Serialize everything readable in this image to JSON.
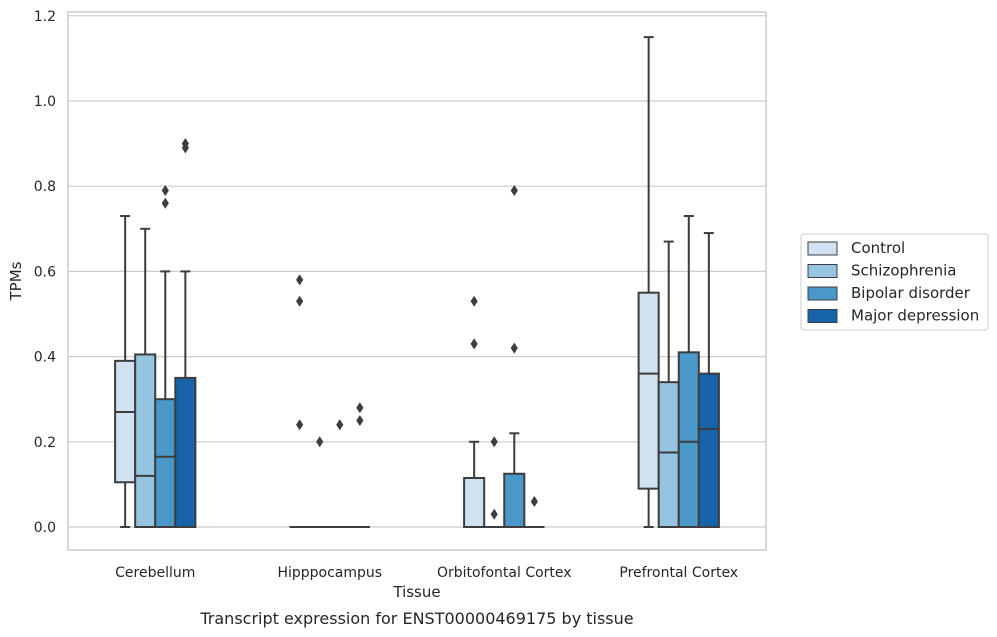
{
  "chart_data": {
    "type": "box",
    "title": "",
    "caption": "Transcript expression for ENST00000469175 by tissue",
    "xlabel": "Tissue",
    "ylabel": "TPMs",
    "ylim": [
      -0.055,
      1.21
    ],
    "yticks": [
      "0.0",
      "0.2",
      "0.4",
      "0.6",
      "0.8",
      "1.0",
      "1.2"
    ],
    "grid": true,
    "legend_position": "right",
    "categories": [
      "Cerebellum",
      "Hipppocampus",
      "Orbitofontal Cortex",
      "Prefrontal Cortex"
    ],
    "series": [
      {
        "name": "Control",
        "color": "#d0e1f2",
        "boxes": [
          {
            "whislo": 0.0,
            "q1": 0.105,
            "med": 0.27,
            "q3": 0.39,
            "whishi": 0.73,
            "fliers": []
          },
          {
            "whislo": 0.0,
            "q1": 0.0,
            "med": 0.0,
            "q3": 0.0,
            "whishi": 0.0,
            "fliers": [
              0.58,
              0.53,
              0.24
            ]
          },
          {
            "whislo": 0.0,
            "q1": 0.0,
            "med": 0.0,
            "q3": 0.115,
            "whishi": 0.2,
            "fliers": [
              0.53,
              0.43
            ]
          },
          {
            "whislo": 0.0,
            "q1": 0.09,
            "med": 0.36,
            "q3": 0.55,
            "whishi": 1.15,
            "fliers": []
          }
        ]
      },
      {
        "name": "Schizophrenia",
        "color": "#94c4df",
        "boxes": [
          {
            "whislo": 0.0,
            "q1": 0.0,
            "med": 0.12,
            "q3": 0.405,
            "whishi": 0.7,
            "fliers": []
          },
          {
            "whislo": 0.0,
            "q1": 0.0,
            "med": 0.0,
            "q3": 0.0,
            "whishi": 0.0,
            "fliers": [
              0.2
            ]
          },
          {
            "whislo": 0.0,
            "q1": 0.0,
            "med": 0.0,
            "q3": 0.0,
            "whishi": 0.0,
            "fliers": [
              0.2,
              0.03
            ]
          },
          {
            "whislo": 0.0,
            "q1": 0.0,
            "med": 0.175,
            "q3": 0.34,
            "whishi": 0.67,
            "fliers": []
          }
        ]
      },
      {
        "name": "Bipolar disorder",
        "color": "#4a98c9",
        "boxes": [
          {
            "whislo": 0.0,
            "q1": 0.0,
            "med": 0.165,
            "q3": 0.3,
            "whishi": 0.6,
            "fliers": [
              0.79,
              0.76
            ]
          },
          {
            "whislo": 0.0,
            "q1": 0.0,
            "med": 0.0,
            "q3": 0.0,
            "whishi": 0.0,
            "fliers": [
              0.24
            ]
          },
          {
            "whislo": 0.0,
            "q1": 0.0,
            "med": 0.0,
            "q3": 0.125,
            "whishi": 0.22,
            "fliers": [
              0.79,
              0.42
            ]
          },
          {
            "whislo": 0.0,
            "q1": 0.0,
            "med": 0.2,
            "q3": 0.41,
            "whishi": 0.73,
            "fliers": []
          }
        ]
      },
      {
        "name": "Major depression",
        "color": "#1764ab",
        "boxes": [
          {
            "whislo": 0.0,
            "q1": 0.0,
            "med": 0.0,
            "q3": 0.35,
            "whishi": 0.6,
            "fliers": [
              0.9,
              0.89
            ]
          },
          {
            "whislo": 0.0,
            "q1": 0.0,
            "med": 0.0,
            "q3": 0.0,
            "whishi": 0.0,
            "fliers": [
              0.28,
              0.25
            ]
          },
          {
            "whislo": 0.0,
            "q1": 0.0,
            "med": 0.0,
            "q3": 0.0,
            "whishi": 0.0,
            "fliers": [
              0.06
            ]
          },
          {
            "whislo": 0.0,
            "q1": 0.0,
            "med": 0.23,
            "q3": 0.36,
            "whishi": 0.69,
            "fliers": []
          }
        ]
      }
    ]
  }
}
